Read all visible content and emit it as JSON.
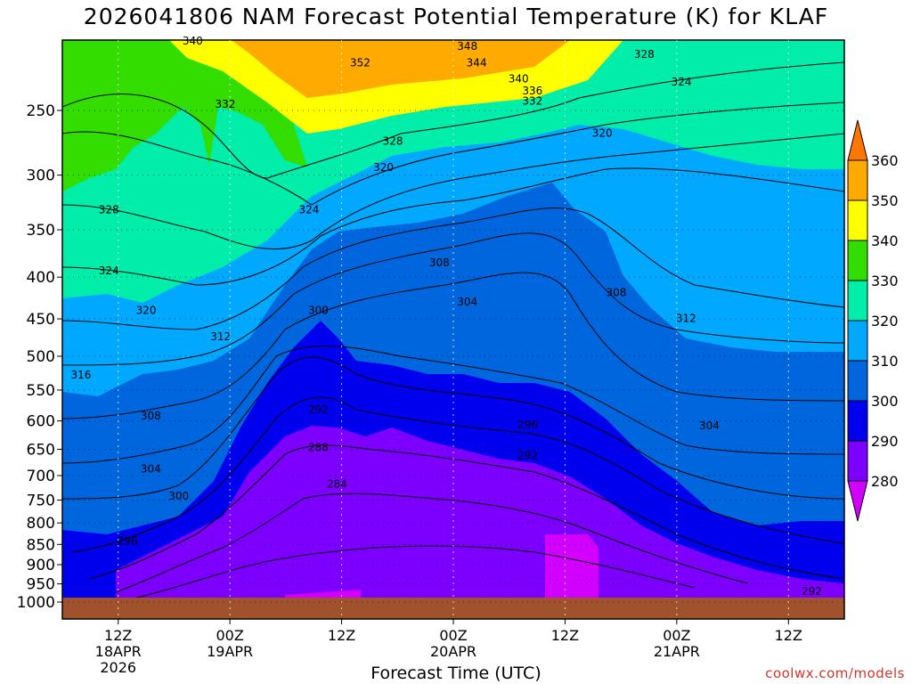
{
  "title": "2026041806 NAM Forecast Potential Temperature (K) for KLAF",
  "credit": "coolwx.com/models",
  "chart_data": {
    "type": "filled-contour",
    "xlabel": "Forecast Time (UTC)",
    "ylabel": "",
    "x_ticks": [
      {
        "hour": 6,
        "label": "12Z",
        "sub1": "18APR",
        "sub2": "2026"
      },
      {
        "hour": 18,
        "label": "00Z",
        "sub1": "19APR",
        "sub2": ""
      },
      {
        "hour": 30,
        "label": "12Z",
        "sub1": "",
        "sub2": ""
      },
      {
        "hour": 42,
        "label": "00Z",
        "sub1": "20APR",
        "sub2": ""
      },
      {
        "hour": 54,
        "label": "12Z",
        "sub1": "",
        "sub2": ""
      },
      {
        "hour": 66,
        "label": "00Z",
        "sub1": "21APR",
        "sub2": ""
      },
      {
        "hour": 78,
        "label": "12Z",
        "sub1": "",
        "sub2": ""
      }
    ],
    "x_range_hours": [
      0,
      84
    ],
    "y_ticks": [
      250,
      300,
      350,
      400,
      450,
      500,
      550,
      600,
      650,
      700,
      750,
      800,
      850,
      900,
      950,
      1000
    ],
    "y_range_hpa": [
      200,
      1020
    ],
    "colorbar": {
      "levels": [
        280,
        290,
        300,
        310,
        320,
        330,
        340,
        350,
        360
      ],
      "colors": [
        "#d200ff",
        "#7d00ff",
        "#0000ee",
        "#0066dd",
        "#00a8ff",
        "#00eeaa",
        "#33dd00",
        "#ffff00",
        "#ffaa00",
        "#ff7700"
      ]
    },
    "contour_labels": [
      {
        "text": "340",
        "hour": 14.0,
        "p": 205
      },
      {
        "text": "352",
        "hour": 32.0,
        "p": 218
      },
      {
        "text": "348",
        "hour": 43.5,
        "p": 208
      },
      {
        "text": "344",
        "hour": 44.5,
        "p": 218
      },
      {
        "text": "340",
        "hour": 49.0,
        "p": 228
      },
      {
        "text": "336",
        "hour": 50.5,
        "p": 236
      },
      {
        "text": "332",
        "hour": 50.5,
        "p": 243
      },
      {
        "text": "328",
        "hour": 62.5,
        "p": 213
      },
      {
        "text": "324",
        "hour": 66.5,
        "p": 230
      },
      {
        "text": "320",
        "hour": 58.0,
        "p": 266
      },
      {
        "text": "332",
        "hour": 17.5,
        "p": 245
      },
      {
        "text": "328",
        "hour": 35.5,
        "p": 272
      },
      {
        "text": "320",
        "hour": 34.5,
        "p": 293
      },
      {
        "text": "324",
        "hour": 26.5,
        "p": 330
      },
      {
        "text": "328",
        "hour": 5.0,
        "p": 330
      },
      {
        "text": "324",
        "hour": 5.0,
        "p": 392
      },
      {
        "text": "320",
        "hour": 9.0,
        "p": 438
      },
      {
        "text": "312",
        "hour": 17.0,
        "p": 472
      },
      {
        "text": "316",
        "hour": 2.0,
        "p": 526
      },
      {
        "text": "308",
        "hour": 40.5,
        "p": 383
      },
      {
        "text": "304",
        "hour": 43.5,
        "p": 428
      },
      {
        "text": "300",
        "hour": 27.5,
        "p": 438
      },
      {
        "text": "308",
        "hour": 59.5,
        "p": 417
      },
      {
        "text": "312",
        "hour": 67.0,
        "p": 448
      },
      {
        "text": "308",
        "hour": 9.5,
        "p": 590
      },
      {
        "text": "304",
        "hour": 9.5,
        "p": 685
      },
      {
        "text": "300",
        "hour": 12.5,
        "p": 740
      },
      {
        "text": "296",
        "hour": 7.0,
        "p": 840
      },
      {
        "text": "292",
        "hour": 27.5,
        "p": 580
      },
      {
        "text": "296",
        "hour": 50.0,
        "p": 605
      },
      {
        "text": "304",
        "hour": 69.5,
        "p": 607
      },
      {
        "text": "292",
        "hour": 50.0,
        "p": 660
      },
      {
        "text": "288",
        "hour": 27.5,
        "p": 645
      },
      {
        "text": "284",
        "hour": 29.5,
        "p": 715
      },
      {
        "text": "292",
        "hour": 80.5,
        "p": 968
      }
    ]
  }
}
